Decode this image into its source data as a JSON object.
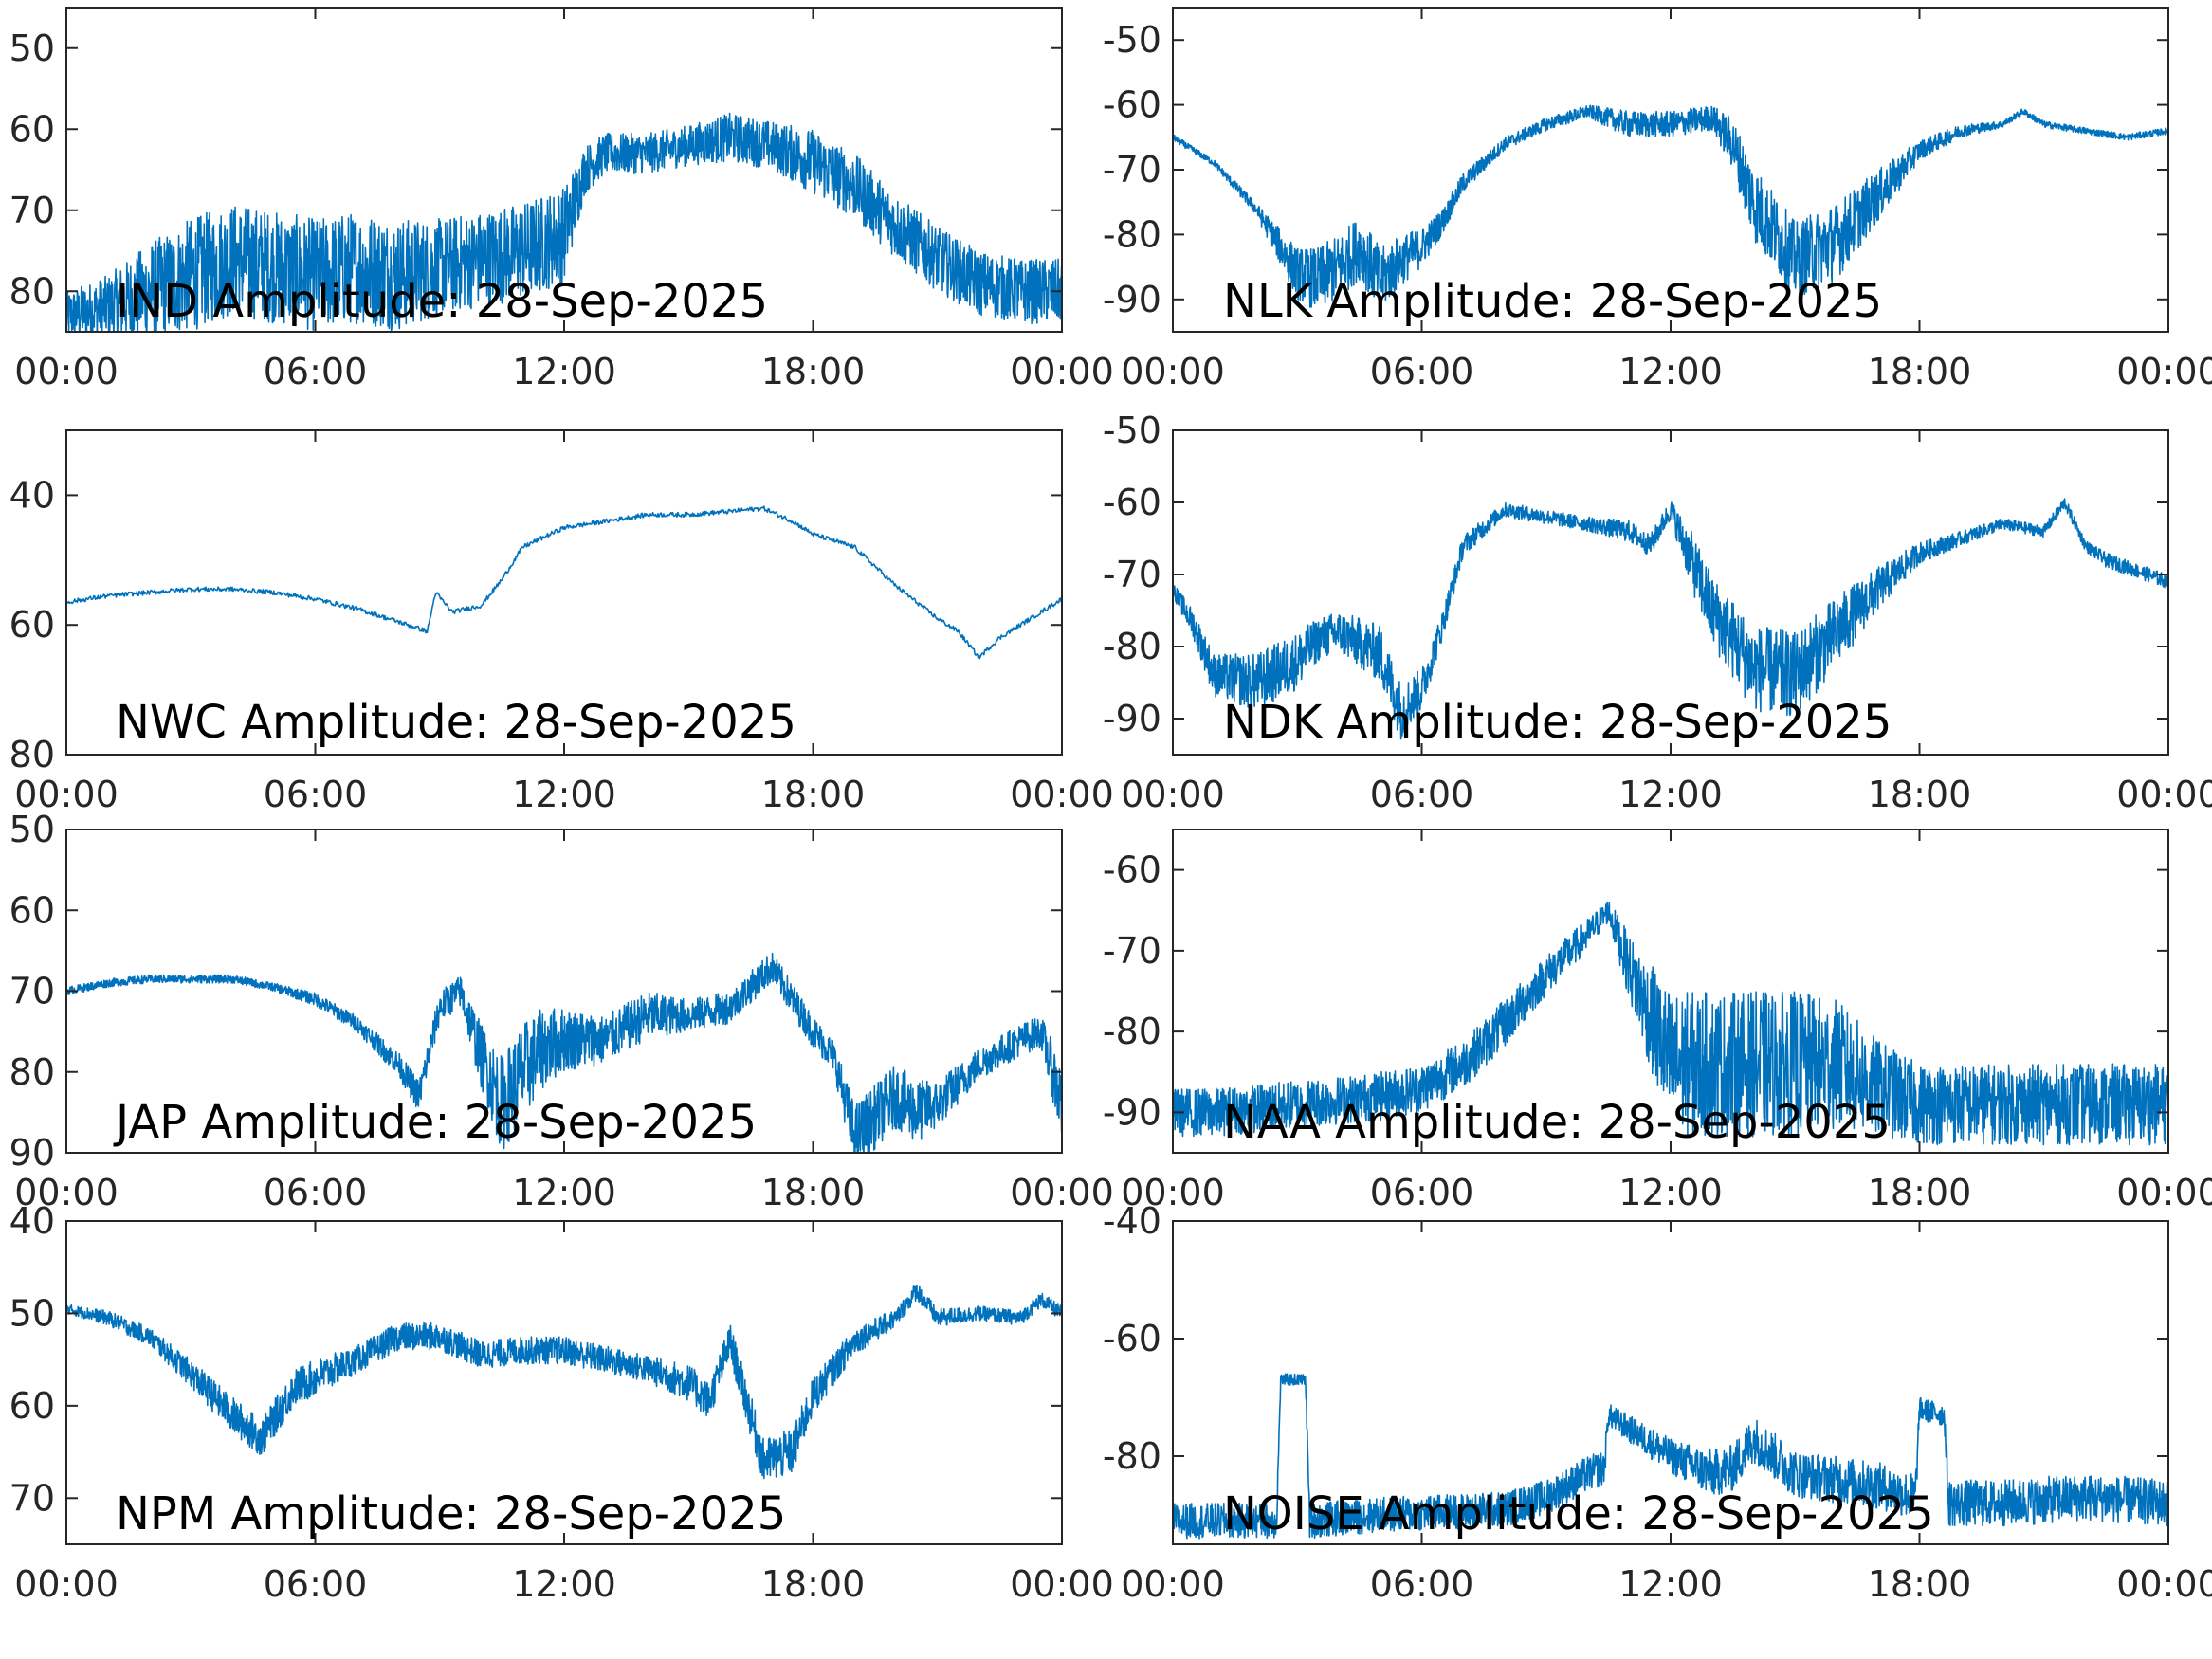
{
  "chart_data": [
    {
      "type": "line",
      "title": "IND Amplitude: 28-Sep-2025",
      "station": "IND",
      "ylim": [
        -85,
        -45
      ],
      "yticks": [
        -50,
        -60,
        -70,
        -80
      ],
      "ytick_labels": [
        "50",
        "60",
        "70",
        "80"
      ],
      "x_range_hours": [
        0,
        24
      ],
      "xtick_labels": [
        "00:00",
        "06:00",
        "12:00",
        "18:00",
        "00:00"
      ],
      "series": [
        {
          "name": "IND amplitude",
          "x_hours": [
            0,
            1,
            2,
            3,
            4,
            5,
            6,
            7,
            8,
            9,
            10,
            11,
            12,
            12.5,
            13,
            14,
            15,
            16,
            17,
            18,
            19,
            20,
            21,
            22,
            23,
            24
          ],
          "values": [
            -83,
            -82,
            -80,
            -78,
            -76,
            -77,
            -78,
            -77,
            -78,
            -77,
            -76,
            -75,
            -73,
            -65,
            -63,
            -63,
            -62,
            -61,
            -62,
            -64,
            -67,
            -72,
            -76,
            -79,
            -80,
            -80
          ],
          "noise": [
            3,
            4,
            6,
            7,
            7,
            7,
            7,
            7,
            7,
            6,
            6,
            6,
            6,
            3,
            2.5,
            2.5,
            2.5,
            3,
            3,
            4,
            4,
            4,
            4,
            4,
            4,
            4
          ]
        }
      ]
    },
    {
      "type": "line",
      "title": "NLK Amplitude: 28-Sep-2025",
      "station": "NLK",
      "ylim": [
        -95,
        -45
      ],
      "yticks": [
        -50,
        -60,
        -70,
        -80,
        -90
      ],
      "ytick_labels": [
        "-50",
        "-60",
        "-70",
        "-80",
        "-90"
      ],
      "x_range_hours": [
        0,
        24
      ],
      "xtick_labels": [
        "00:00",
        "06:00",
        "12:00",
        "18:00",
        "00:00"
      ],
      "series": [
        {
          "name": "NLK amplitude",
          "x_hours": [
            0,
            1,
            2,
            3,
            3.5,
            4,
            4.5,
            5,
            5.5,
            6,
            6.5,
            7,
            8,
            9,
            10,
            11,
            12,
            13,
            13.5,
            14,
            15,
            16,
            17,
            18,
            19,
            20,
            20.5,
            21,
            22,
            23,
            24
          ],
          "values": [
            -65,
            -69,
            -76,
            -86,
            -87,
            -85,
            -82,
            -87,
            -84,
            -82,
            -78,
            -72,
            -66,
            -63,
            -61,
            -63,
            -63,
            -62,
            -66,
            -75,
            -84,
            -81,
            -74,
            -67,
            -64,
            -63,
            -61,
            -63,
            -64,
            -65,
            -64
          ],
          "noise": [
            0.5,
            0.5,
            1,
            4,
            5,
            5,
            5,
            5,
            4,
            3,
            2,
            1.5,
            1,
            1,
            1,
            2,
            2,
            2,
            4,
            6,
            6,
            6,
            4,
            1.5,
            1,
            0.5,
            0.5,
            0.5,
            0.5,
            0.5,
            0.5
          ]
        }
      ]
    },
    {
      "type": "line",
      "title": "NWC Amplitude: 28-Sep-2025",
      "station": "NWC",
      "ylim": [
        -80,
        -30
      ],
      "yticks": [
        -40,
        -60,
        -80
      ],
      "ytick_labels": [
        "40",
        "60",
        "80"
      ],
      "x_range_hours": [
        0,
        24
      ],
      "xtick_labels": [
        "00:00",
        "06:00",
        "12:00",
        "18:00",
        "00:00"
      ],
      "series": [
        {
          "name": "NWC amplitude",
          "x_hours": [
            0,
            1,
            2,
            3,
            4,
            5,
            6,
            7,
            8,
            8.7,
            8.9,
            9.3,
            10,
            10.5,
            11,
            12,
            13,
            14,
            15,
            16,
            16.8,
            17.5,
            18,
            19,
            20,
            21,
            21.5,
            22,
            22.5,
            23,
            23.5,
            24
          ],
          "values": [
            -56.5,
            -55.5,
            -55,
            -54.5,
            -54.5,
            -55,
            -56,
            -57.5,
            -59.5,
            -61,
            -55,
            -58,
            -57,
            -53,
            -48,
            -45,
            -44,
            -43,
            -43,
            -42.5,
            -42,
            -44,
            -46,
            -48,
            -54,
            -59,
            -61,
            -65,
            -62,
            -60,
            -58,
            -56
          ]
        }
      ]
    },
    {
      "type": "line",
      "title": "NDK Amplitude: 28-Sep-2025",
      "station": "NDK",
      "ylim": [
        -95,
        -50
      ],
      "yticks": [
        -50,
        -60,
        -70,
        -80,
        -90
      ],
      "ytick_labels": [
        "-50",
        "-60",
        "-70",
        "-80",
        "-90"
      ],
      "x_range_hours": [
        0,
        24
      ],
      "xtick_labels": [
        "00:00",
        "06:00",
        "12:00",
        "18:00",
        "00:00"
      ],
      "series": [
        {
          "name": "NDK amplitude",
          "x_hours": [
            0,
            0.5,
            1,
            2,
            3,
            3.5,
            4,
            5,
            5.5,
            6,
            6.5,
            7,
            8,
            9,
            10,
            11,
            11.5,
            12,
            12.5,
            13,
            14,
            15,
            16,
            17,
            18,
            19,
            20,
            21,
            21.5,
            22,
            22.5,
            23,
            24
          ],
          "values": [
            -72,
            -77,
            -84,
            -85,
            -82,
            -79,
            -78,
            -81,
            -89,
            -86,
            -77,
            -66,
            -61,
            -62,
            -63,
            -64,
            -66,
            -61,
            -68,
            -75,
            -83,
            -84,
            -78,
            -72,
            -67,
            -65,
            -63,
            -64,
            -60,
            -66,
            -68,
            -69,
            -71
          ],
          "noise": [
            1,
            2,
            3,
            4,
            4,
            3,
            3,
            4,
            4,
            3,
            2,
            1.5,
            1,
            1,
            1,
            1.5,
            1.5,
            1.5,
            4,
            5,
            6,
            6,
            5,
            3,
            1.5,
            1,
            0.8,
            0.8,
            0.8,
            0.8,
            1,
            1,
            1
          ]
        }
      ]
    },
    {
      "type": "line",
      "title": "JAP Amplitude: 28-Sep-2025",
      "station": "JAP",
      "ylim": [
        -90,
        -50
      ],
      "yticks": [
        -50,
        -60,
        -70,
        -80,
        -90
      ],
      "ytick_labels": [
        "50",
        "60",
        "70",
        "80",
        "90"
      ],
      "x_range_hours": [
        0,
        24
      ],
      "xtick_labels": [
        "00:00",
        "06:00",
        "12:00",
        "18:00",
        "00:00"
      ],
      "series": [
        {
          "name": "JAP amplitude",
          "x_hours": [
            0,
            1,
            2,
            3,
            4,
            5,
            6,
            7,
            8,
            8.5,
            9,
            9.5,
            10,
            10.5,
            11,
            11.5,
            12,
            13,
            14,
            15,
            16,
            17,
            17.5,
            18,
            18.5,
            19,
            20,
            20.5,
            21,
            22,
            23,
            23.5,
            24
          ],
          "values": [
            -70,
            -69,
            -68.5,
            -68.5,
            -68.5,
            -69.5,
            -71,
            -74,
            -79,
            -83,
            -72,
            -70,
            -78,
            -84,
            -80,
            -77,
            -76,
            -76,
            -73,
            -73,
            -72,
            -67,
            -71,
            -75,
            -78,
            -88,
            -83,
            -85,
            -84,
            -79,
            -76,
            -75,
            -84
          ],
          "noise": [
            0.5,
            0.5,
            0.5,
            0.5,
            0.5,
            0.5,
            0.8,
            1,
            1.5,
            2,
            2,
            2,
            4,
            6,
            6,
            5,
            4,
            3,
            3,
            2,
            2,
            2,
            2,
            2,
            2,
            4,
            4,
            4,
            3,
            2,
            2,
            2,
            5
          ]
        }
      ]
    },
    {
      "type": "line",
      "title": "NAA Amplitude: 28-Sep-2025",
      "station": "NAA",
      "ylim": [
        -95,
        -55
      ],
      "yticks": [
        -60,
        -70,
        -80,
        -90
      ],
      "ytick_labels": [
        "-60",
        "-70",
        "-80",
        "-90"
      ],
      "x_range_hours": [
        0,
        24
      ],
      "xtick_labels": [
        "00:00",
        "06:00",
        "12:00",
        "18:00",
        "00:00"
      ],
      "series": [
        {
          "name": "NAA amplitude",
          "x_hours": [
            0,
            1,
            2,
            3,
            4,
            5,
            6,
            7,
            8,
            9,
            10,
            10.5,
            11,
            12,
            13,
            14,
            15,
            16,
            17,
            18,
            19,
            20,
            21,
            22,
            23,
            24
          ],
          "values": [
            -90,
            -90,
            -89.5,
            -89,
            -88.5,
            -88,
            -87,
            -84,
            -79,
            -73,
            -68,
            -65,
            -72,
            -84,
            -84,
            -84,
            -84,
            -84,
            -87,
            -89,
            -89,
            -89,
            -89,
            -89,
            -89,
            -89
          ],
          "noise": [
            3,
            3,
            3,
            3,
            3,
            3,
            3,
            3,
            3,
            2.5,
            2,
            1.5,
            4,
            9,
            9,
            9,
            9,
            8,
            6,
            5,
            5,
            5,
            5,
            5,
            5,
            5
          ]
        }
      ]
    },
    {
      "type": "line",
      "title": "NPM Amplitude: 28-Sep-2025",
      "station": "NPM",
      "ylim": [
        -75,
        -40
      ],
      "yticks": [
        -40,
        -50,
        -60,
        -70
      ],
      "ytick_labels": [
        "40",
        "50",
        "60",
        "70"
      ],
      "x_range_hours": [
        0,
        24
      ],
      "xtick_labels": [
        "00:00",
        "06:00",
        "12:00",
        "18:00",
        "00:00"
      ],
      "series": [
        {
          "name": "NPM amplitude",
          "x_hours": [
            0,
            1,
            2,
            3,
            4,
            4.7,
            5.5,
            6,
            7,
            8,
            9,
            10,
            11,
            12,
            13,
            14,
            15,
            15.5,
            16,
            16.8,
            17.5,
            18,
            19,
            20,
            20.5,
            21,
            22,
            23,
            23.5,
            24
          ],
          "values": [
            -49.5,
            -50.5,
            -52.5,
            -56.5,
            -61,
            -63.5,
            -58,
            -57,
            -55,
            -52.5,
            -52.5,
            -54.5,
            -54,
            -54,
            -55,
            -56,
            -57.5,
            -59.5,
            -53,
            -66,
            -65,
            -59,
            -53,
            -50.5,
            -47.5,
            -50.5,
            -50,
            -50.5,
            -48.5,
            -50
          ],
          "noise": [
            0.5,
            0.8,
            1,
            1.5,
            2,
            2,
            2,
            2,
            1.5,
            1.5,
            1.5,
            1.5,
            1.5,
            1.5,
            1.5,
            1.5,
            2,
            2,
            2,
            2.5,
            2.5,
            2,
            1.5,
            1,
            1,
            1,
            0.8,
            0.8,
            0.8,
            0.8
          ]
        }
      ]
    },
    {
      "type": "line",
      "title": "NOISE Amplitude: 28-Sep-2025",
      "station": "NOISE",
      "ylim": [
        -95,
        -40
      ],
      "yticks": [
        -40,
        -60,
        -80
      ],
      "ytick_labels": [
        "-40",
        "-60",
        "-80"
      ],
      "x_range_hours": [
        0,
        24
      ],
      "xtick_labels": [
        "00:00",
        "06:00",
        "12:00",
        "18:00",
        "00:00"
      ],
      "series": [
        {
          "name": "NOISE amplitude",
          "x_hours": [
            0,
            2.5,
            2.6,
            3.2,
            3.3,
            5,
            8,
            9,
            10,
            10.4,
            10.5,
            12,
            13,
            13.5,
            14,
            15,
            17,
            17.9,
            18,
            18.6,
            18.7,
            20,
            22,
            24
          ],
          "values": [
            -91,
            -91,
            -67,
            -67,
            -91,
            -90,
            -89,
            -87,
            -83,
            -82,
            -73,
            -80,
            -83,
            -82,
            -77,
            -83,
            -85,
            -87,
            -72,
            -73,
            -88,
            -88,
            -87,
            -88
          ],
          "noise": [
            3,
            3,
            1,
            1,
            3,
            3,
            3,
            3,
            3,
            3,
            2,
            3,
            4,
            4,
            4,
            4,
            4,
            4,
            2,
            2,
            4,
            4,
            4,
            4
          ]
        }
      ]
    }
  ],
  "colors": {
    "trace": "#0072BD",
    "axes": "#262626",
    "title": "#000000",
    "background": "#ffffff"
  }
}
